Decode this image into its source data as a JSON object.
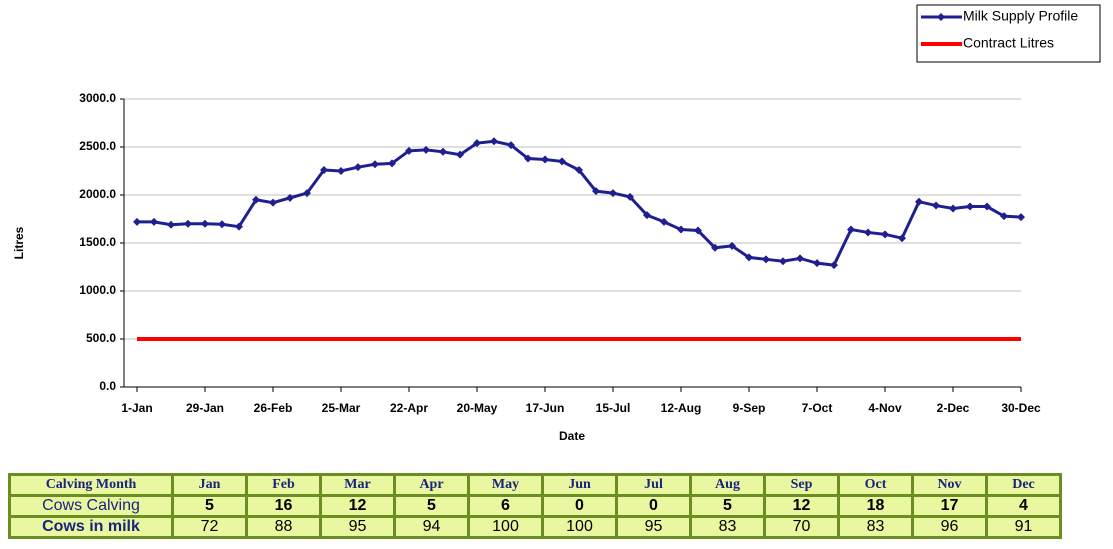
{
  "chart_data": {
    "type": "line",
    "x_label": "Date",
    "y_label": "Litres",
    "categories": [
      "1-Jan",
      null,
      null,
      null,
      "29-Jan",
      null,
      null,
      null,
      "26-Feb",
      null,
      null,
      null,
      "25-Mar",
      null,
      null,
      null,
      "22-Apr",
      null,
      null,
      null,
      "20-May",
      null,
      null,
      null,
      "17-Jun",
      null,
      null,
      null,
      "15-Jul",
      null,
      null,
      null,
      "12-Aug",
      null,
      null,
      null,
      "9-Sep",
      null,
      null,
      null,
      "7-Oct",
      null,
      null,
      null,
      "4-Nov",
      null,
      null,
      null,
      "2-Dec",
      null,
      null,
      null,
      "30-Dec"
    ],
    "series": [
      {
        "name": "Milk Supply Profile",
        "color": "#1f1f8f",
        "marker": "diamond",
        "values": [
          1720,
          1720,
          1690,
          1700,
          1700,
          1695,
          1670,
          1950,
          1920,
          1970,
          2020,
          2260,
          2250,
          2290,
          2320,
          2330,
          2460,
          2470,
          2450,
          2420,
          2540,
          2560,
          2520,
          2380,
          2370,
          2350,
          2260,
          2040,
          2020,
          1980,
          1790,
          1720,
          1640,
          1630,
          1450,
          1470,
          1350,
          1330,
          1310,
          1340,
          1290,
          1270,
          1640,
          1610,
          1590,
          1550,
          1930,
          1890,
          1860,
          1880,
          1880,
          1780,
          1770
        ]
      },
      {
        "name": "Contract Litres",
        "color": "#ff0000",
        "values": [
          500,
          500,
          500,
          500,
          500,
          500,
          500,
          500,
          500,
          500,
          500,
          500,
          500,
          500,
          500,
          500,
          500,
          500,
          500,
          500,
          500,
          500,
          500,
          500,
          500,
          500,
          500,
          500,
          500,
          500,
          500,
          500,
          500,
          500,
          500,
          500,
          500,
          500,
          500,
          500,
          500,
          500,
          500,
          500,
          500,
          500,
          500,
          500,
          500,
          500,
          500,
          500,
          500
        ]
      }
    ],
    "ylim": [
      0,
      3000
    ],
    "yticks": [
      {
        "value": 0,
        "label": "0.0"
      },
      {
        "value": 500,
        "label": "500.0"
      },
      {
        "value": 1000,
        "label": "1000.0"
      },
      {
        "value": 1500,
        "label": "1500.0"
      },
      {
        "value": 2000,
        "label": "2000.0"
      },
      {
        "value": 2500,
        "label": "2500.0"
      },
      {
        "value": 3000,
        "label": "3000.0"
      }
    ],
    "grid": true,
    "legend": "top-right"
  },
  "table": {
    "header": [
      "Calving Month",
      "Jan",
      "Feb",
      "Mar",
      "Apr",
      "May",
      "Jun",
      "Jul",
      "Aug",
      "Sep",
      "Oct",
      "Nov",
      "Dec"
    ],
    "rows": [
      [
        "Cows Calving",
        5,
        16,
        12,
        5,
        6,
        0,
        0,
        5,
        12,
        18,
        17,
        4
      ],
      [
        "Cows in milk",
        72,
        88,
        95,
        94,
        100,
        100,
        95,
        83,
        70,
        83,
        96,
        91
      ]
    ]
  }
}
